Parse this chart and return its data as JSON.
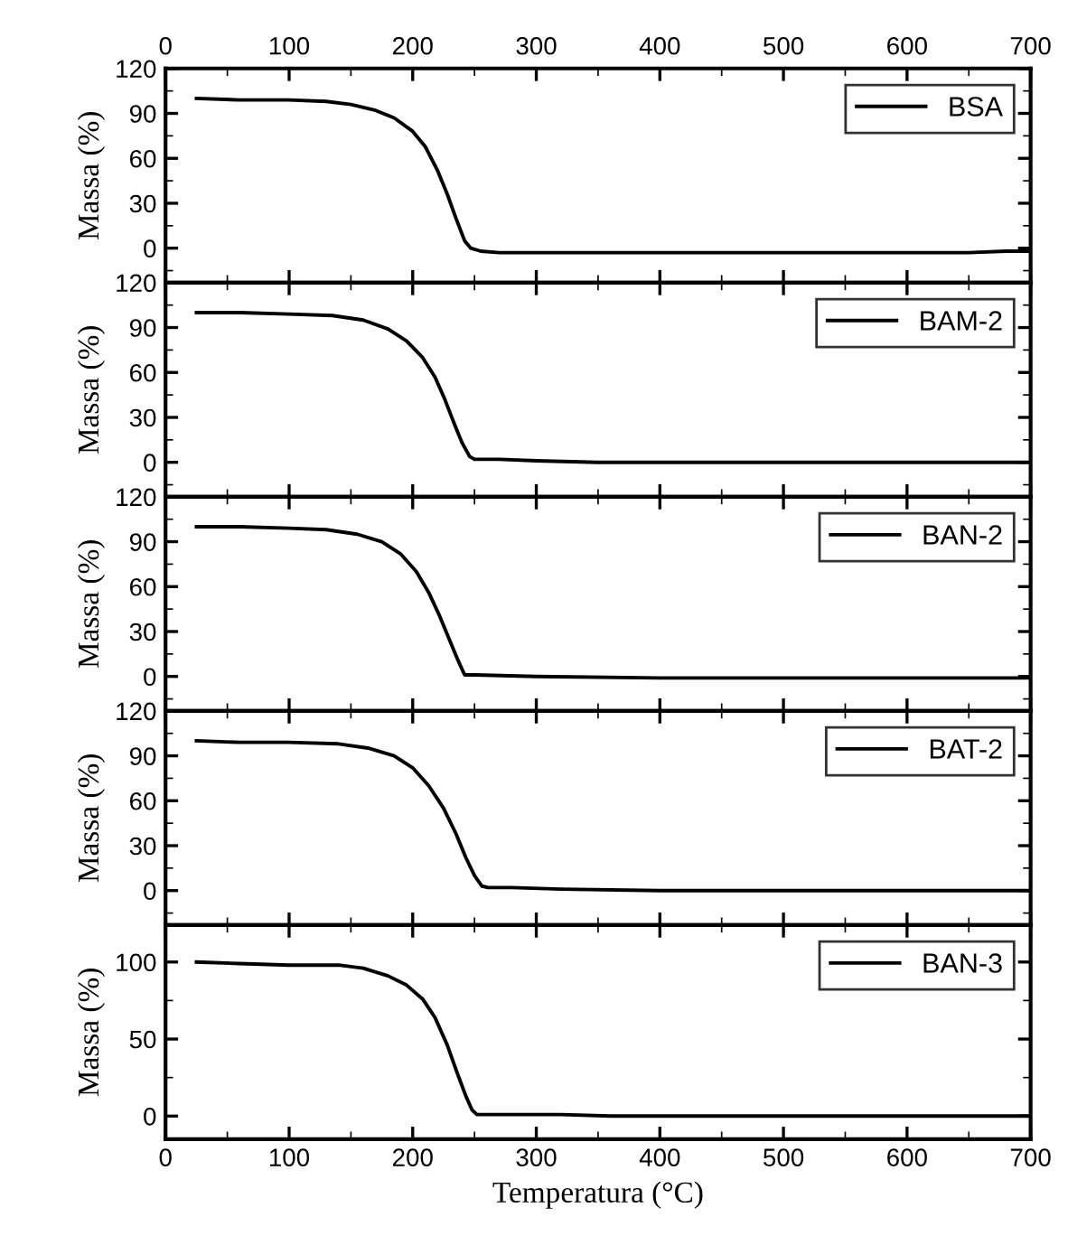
{
  "chart_data": [
    {
      "type": "line",
      "ylabel": "Massa (%)",
      "xlim": [
        0,
        700
      ],
      "xticks": [
        0,
        100,
        200,
        300,
        400,
        500,
        600,
        700
      ],
      "x2lim": [
        0,
        700
      ],
      "x2ticks": [
        0,
        100,
        200,
        300,
        400,
        500,
        600,
        700
      ],
      "ylim": [
        -23,
        120
      ],
      "yticks": [
        0,
        30,
        60,
        90,
        120
      ],
      "tick_labels": "y",
      "legend": "top right",
      "series": [
        {
          "name": "BSA",
          "color": "#000000",
          "x": [
            25,
            60,
            100,
            130,
            150,
            170,
            185,
            200,
            210,
            220,
            228,
            235,
            242,
            247,
            255,
            270,
            300,
            400,
            500,
            600,
            650,
            680,
            700
          ],
          "values": [
            100,
            99,
            99,
            98,
            96,
            92,
            87,
            78,
            68,
            52,
            36,
            20,
            5,
            0,
            -2,
            -3,
            -3,
            -3,
            -3,
            -3,
            -3,
            -2,
            -2
          ]
        }
      ]
    },
    {
      "type": "line",
      "ylabel": "Massa (%)",
      "xlim": [
        0,
        700
      ],
      "xticks": [
        0,
        100,
        200,
        300,
        400,
        500,
        600,
        700
      ],
      "ylim": [
        -23,
        120
      ],
      "yticks": [
        0,
        30,
        60,
        90,
        120
      ],
      "tick_labels": "y",
      "legend": "top right",
      "series": [
        {
          "name": "BAM-2",
          "color": "#000000",
          "x": [
            25,
            60,
            100,
            135,
            160,
            180,
            195,
            208,
            218,
            226,
            234,
            240,
            246,
            250,
            270,
            300,
            350,
            400,
            500,
            600,
            700
          ],
          "values": [
            100,
            100,
            99,
            98,
            95,
            89,
            81,
            70,
            57,
            42,
            25,
            13,
            4,
            2,
            2,
            1,
            0,
            0,
            0,
            0,
            0
          ]
        }
      ]
    },
    {
      "type": "line",
      "ylabel": "Massa (%)",
      "xlim": [
        0,
        700
      ],
      "xticks": [
        0,
        100,
        200,
        300,
        400,
        500,
        600,
        700
      ],
      "ylim": [
        -23,
        120
      ],
      "yticks": [
        0,
        30,
        60,
        90,
        120
      ],
      "tick_labels": "y",
      "legend": "top right",
      "series": [
        {
          "name": "BAN-2",
          "color": "#000000",
          "x": [
            25,
            60,
            100,
            130,
            155,
            175,
            190,
            203,
            213,
            222,
            230,
            236,
            242,
            250,
            300,
            400,
            500,
            600,
            700
          ],
          "values": [
            100,
            100,
            99,
            98,
            95,
            90,
            82,
            70,
            56,
            40,
            24,
            12,
            1,
            1,
            0,
            -1,
            -1,
            -1,
            -1
          ]
        }
      ]
    },
    {
      "type": "line",
      "ylabel": "Massa (%)",
      "xlim": [
        0,
        700
      ],
      "xticks": [
        0,
        100,
        200,
        300,
        400,
        500,
        600,
        700
      ],
      "ylim": [
        -23,
        120
      ],
      "yticks": [
        0,
        30,
        60,
        90,
        120
      ],
      "tick_labels": "y",
      "legend": "top right",
      "series": [
        {
          "name": "BAT-2",
          "color": "#000000",
          "x": [
            25,
            60,
            100,
            140,
            165,
            185,
            200,
            213,
            225,
            235,
            243,
            250,
            256,
            261,
            280,
            320,
            400,
            500,
            600,
            700
          ],
          "values": [
            100,
            99,
            99,
            98,
            95,
            90,
            82,
            70,
            55,
            38,
            22,
            10,
            3,
            2,
            2,
            1,
            0,
            0,
            0,
            0
          ]
        }
      ]
    },
    {
      "type": "line",
      "xlabel": "Temperatura (°C)",
      "ylabel": "Massa (%)",
      "xlim": [
        0,
        700
      ],
      "xticks": [
        0,
        100,
        200,
        300,
        400,
        500,
        600,
        700
      ],
      "ylim": [
        -15,
        124
      ],
      "yticks": [
        0,
        50,
        100
      ],
      "legend": "top right",
      "series": [
        {
          "name": "BAN-3",
          "color": "#000000",
          "x": [
            25,
            60,
            100,
            140,
            160,
            180,
            195,
            208,
            218,
            228,
            236,
            243,
            248,
            252,
            280,
            320,
            360,
            400,
            500,
            600,
            700
          ],
          "values": [
            100,
            99,
            98,
            98,
            96,
            91,
            85,
            76,
            64,
            46,
            28,
            13,
            4,
            1,
            1,
            1,
            0,
            0,
            0,
            0,
            0
          ]
        }
      ]
    }
  ]
}
